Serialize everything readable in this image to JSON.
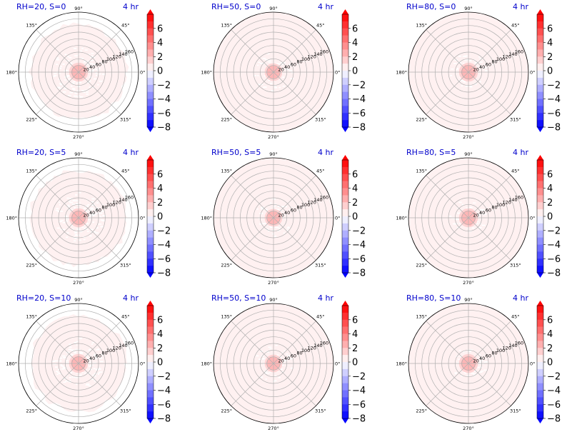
{
  "figure": {
    "rows": 3,
    "cols": 3,
    "title_color": "#0000cc"
  },
  "chart_data": {
    "type": "polar-contour",
    "colormap": "bwr",
    "colorbar": {
      "min": -8,
      "max": 8,
      "step": 1,
      "ticks": [
        6,
        4,
        2,
        0,
        -2,
        -4,
        -6,
        -8
      ],
      "tick_labels": [
        "6",
        "4",
        "2",
        "0",
        "−2",
        "−4",
        "−6",
        "−8"
      ],
      "extend": "both"
    },
    "angular_ticks": [
      "0°",
      "45°",
      "90°",
      "135°",
      "180°",
      "225°",
      "270°",
      "315°"
    ],
    "angular_values_deg": [
      0,
      45,
      90,
      135,
      180,
      225,
      270,
      315
    ],
    "radial_ticks": [
      "20",
      "40",
      "60",
      "80",
      "100",
      "120",
      "140",
      "160"
    ],
    "radial_values": [
      20,
      40,
      60,
      80,
      100,
      120,
      140,
      160
    ],
    "rmax": 180,
    "panels": [
      {
        "title": "RH=20, S=0",
        "time": "4 hr",
        "outer_fill_radius": 145,
        "core_radius": 22,
        "core_level": 1.5,
        "outer_level": 0.5
      },
      {
        "title": "RH=50, S=0",
        "time": "4 hr",
        "outer_fill_radius": 180,
        "core_radius": 20,
        "core_level": 1.5,
        "outer_level": 0.5
      },
      {
        "title": "RH=80, S=0",
        "time": "4 hr",
        "outer_fill_radius": 180,
        "core_radius": 22,
        "core_level": 1.5,
        "outer_level": 0.5
      },
      {
        "title": "RH=20, S=5",
        "time": "4 hr",
        "outer_fill_radius": 145,
        "core_radius": 22,
        "core_level": 1.5,
        "outer_level": 0.5
      },
      {
        "title": "RH=50, S=5",
        "time": "4 hr",
        "outer_fill_radius": 180,
        "core_radius": 20,
        "core_level": 1.5,
        "outer_level": 0.5
      },
      {
        "title": "RH=80, S=5",
        "time": "4 hr",
        "outer_fill_radius": 180,
        "core_radius": 22,
        "core_level": 1.5,
        "outer_level": 0.5
      },
      {
        "title": "RH=20, S=10",
        "time": "4 hr",
        "outer_fill_radius": 145,
        "core_radius": 22,
        "core_level": 1.5,
        "outer_level": 0.5
      },
      {
        "title": "RH=50, S=10",
        "time": "4 hr",
        "outer_fill_radius": 180,
        "core_radius": 20,
        "core_level": 1.5,
        "outer_level": 0.5
      },
      {
        "title": "RH=80, S=10",
        "time": "4 hr",
        "outer_fill_radius": 180,
        "core_radius": 22,
        "core_level": 1.5,
        "outer_level": 0.5
      }
    ]
  }
}
